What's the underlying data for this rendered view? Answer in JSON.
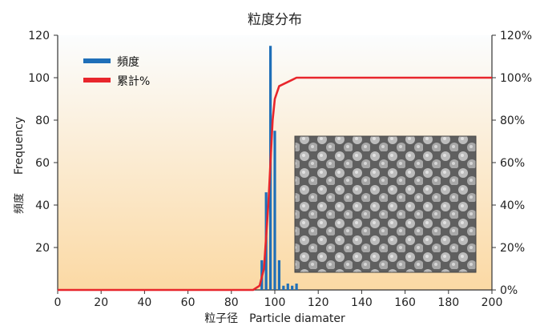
{
  "chart_data": {
    "type": "bar+line",
    "title": "粒度分布",
    "xlabel": "粒子径　Particle diamater",
    "ylabel_en": "Frequency",
    "ylabel_jp": "頻度",
    "xlim": [
      0,
      200
    ],
    "ylim": [
      0,
      120
    ],
    "y2lim": [
      0,
      120
    ],
    "x_ticks": [
      0,
      20,
      40,
      60,
      80,
      100,
      120,
      140,
      160,
      180,
      200
    ],
    "y_ticks": [
      20,
      40,
      60,
      80,
      100,
      120
    ],
    "y2_tick_labels": [
      "0%",
      "20%",
      "40%",
      "60%",
      "80%",
      "100%",
      "120%"
    ],
    "legend_position": "top-left",
    "grid": false,
    "series": [
      {
        "name": "頻度",
        "type": "bar",
        "color": "#1f6fb8",
        "x": [
          94,
          96,
          98,
          100,
          102,
          104,
          106,
          108,
          110
        ],
        "values": [
          14,
          46,
          115,
          75,
          14,
          2,
          3,
          2,
          3
        ]
      },
      {
        "name": "累計%",
        "type": "line",
        "axis": "right",
        "color": "#e8262c",
        "x": [
          0,
          90,
          93,
          95,
          97,
          99,
          100,
          102,
          104,
          106,
          108,
          110,
          200
        ],
        "values": [
          0,
          0,
          2,
          10,
          40,
          80,
          90,
          96,
          97,
          98,
          99,
          100,
          100
        ]
      }
    ]
  },
  "inset_image": {
    "label": "SEM micrograph of spherical particles"
  }
}
